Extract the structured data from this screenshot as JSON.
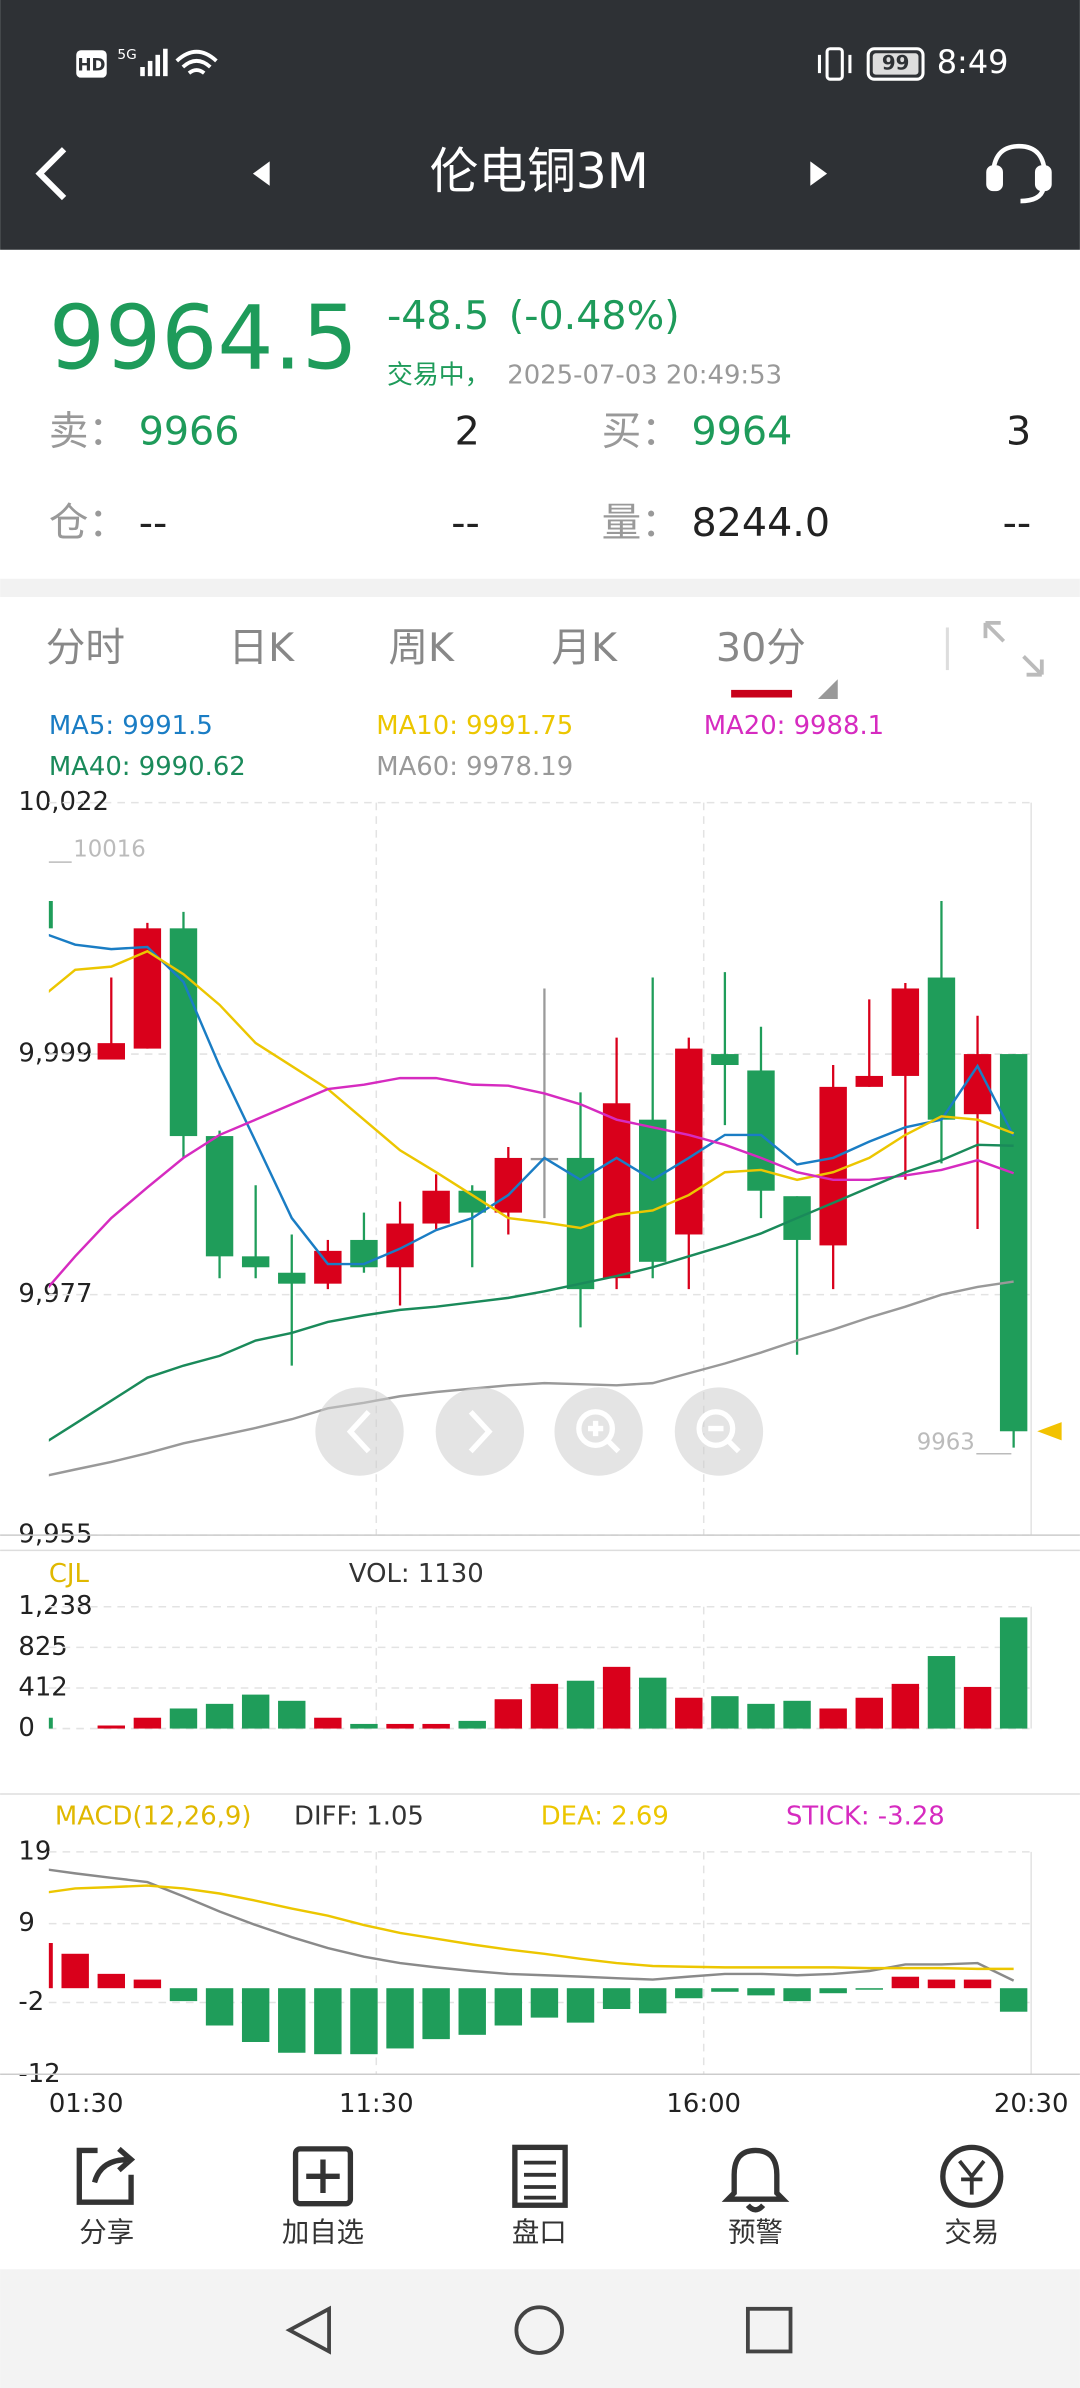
{
  "status_bar": {
    "network": "HD",
    "signal": "5G",
    "battery": 99,
    "time": "8:49"
  },
  "header": {
    "title": "伦电铜3M"
  },
  "quote": {
    "price": 9964.5,
    "change": -48.5,
    "change_percent": "(-0.48%)",
    "status": "交易中，",
    "timestamp": "2025-07-03 20:49:53",
    "rows": [
      [
        {
          "label": "卖：",
          "value": 9966,
          "qty": 2
        },
        {
          "label": "买：",
          "value": 9964,
          "qty": 3
        }
      ],
      [
        {
          "label": "仓：",
          "value": "--",
          "qty": "--"
        },
        {
          "label": "量：",
          "value": "8244.0",
          "qty": "--"
        }
      ]
    ]
  },
  "tabs": {
    "items": [
      "分时",
      "日K",
      "周K",
      "月K",
      "30分"
    ],
    "active": 4
  },
  "chart_data": [
    {
      "type": "candlestick",
      "ylim": [
        9955,
        10022
      ],
      "yticks": [
        {
          "value": 10022,
          "label": "10,022"
        },
        {
          "value": 9999,
          "label": "9,999"
        },
        {
          "value": 9977,
          "label": "9,977"
        },
        {
          "value": 9955,
          "label": "9,955"
        }
      ],
      "grid": true,
      "up_color": "#d9001b",
      "down_color": "#1f9d5a",
      "doji_color": "#9a9a9a",
      "open": [
        10013,
        null,
        9998.5,
        9999.5,
        10010.5,
        9991.5,
        9980.5,
        9979,
        9978,
        9982,
        9979.5,
        9983.5,
        9986.5,
        9984.5,
        9989.5,
        9989.5,
        9978.5,
        9993,
        9982.5,
        9999,
        9997.5,
        9986,
        9981.5,
        9996,
        9997,
        10006,
        9993.5,
        9999
      ],
      "high": [
        10016,
        null,
        10006,
        10011,
        10012,
        9992,
        9987,
        9982.5,
        9982,
        9984.5,
        9985.5,
        9988,
        9987,
        9990.5,
        10005,
        9995.5,
        10000.5,
        10006,
        10000.5,
        10006.5,
        10001.5,
        9986,
        9998,
        10004,
        10005.5,
        10013,
        10002.5,
        9999
      ],
      "low": [
        10010.5,
        null,
        9998.5,
        9999.5,
        9989.5,
        9978.5,
        9978.5,
        9970.5,
        9977.5,
        9979,
        9976,
        9983,
        9979.5,
        9982.5,
        9984,
        9974,
        9977.5,
        9978.5,
        9977.5,
        9992.5,
        9984,
        9971.5,
        9977.5,
        9996,
        9987.5,
        9989,
        9983,
        9963
      ],
      "close": [
        10010.5,
        null,
        10000,
        10010.5,
        9991.5,
        9980.5,
        9979.5,
        9978,
        9981,
        9979.5,
        9983.5,
        9986.5,
        9984.5,
        9989.5,
        9989.5,
        9977.5,
        9994.5,
        9980,
        9999.5,
        9998,
        9986.5,
        9982,
        9996,
        9997,
        10005,
        9993,
        9999,
        9964.5
      ],
      "series": [
        {
          "name": "MA5: 9991.5",
          "color": "#1a7dc4",
          "values": [
            10010.2,
            10009,
            10008.6,
            10008.8,
            10005.6,
            9997.9,
            9991,
            9984,
            9979.8,
            9979.8,
            9981.2,
            9982.9,
            9984,
            9986.1,
            9989.5,
            9987.5,
            9989.5,
            9987.5,
            9989.5,
            9991.6,
            9991.6,
            9988.9,
            9989.5,
            9991,
            9992.3,
            9993,
            9997.9,
            9991.5
          ]
        },
        {
          "name": "MA10: 9991.75",
          "color": "#ecc600",
          "values": [
            10004,
            10006.7,
            10007,
            10008.4,
            10006.3,
            10003.5,
            10000,
            9997.9,
            9995.8,
            9993,
            9990.2,
            9988.2,
            9986.1,
            9984,
            9983.6,
            9983.1,
            9984.3,
            9984.7,
            9986.1,
            9988.2,
            9988.4,
            9987.5,
            9988.2,
            9989.5,
            9991.6,
            9993.3,
            9993,
            9991.75
          ]
        },
        {
          "name": "MA20: 9988.1",
          "color": "#d62bc0",
          "values": [
            9976.7,
            9980.5,
            9984,
            9986.8,
            9989.5,
            9991.6,
            9993,
            9994.4,
            9995.8,
            9996.2,
            9996.8,
            9996.8,
            9996.2,
            9996.1,
            9995.4,
            9994.4,
            9993,
            9992.3,
            9991.6,
            9990.7,
            9989.5,
            9988.2,
            9987.5,
            9987.5,
            9987.9,
            9988.4,
            9989.3,
            9988.1
          ]
        },
        {
          "name": "MA40: 9990.62",
          "color": "#1a8a5a",
          "values": [
            9963.1,
            9965.2,
            9967.3,
            9969.4,
            9970.5,
            9971.4,
            9972.8,
            9973.5,
            9974.5,
            9975.1,
            9975.6,
            9975.9,
            9976.3,
            9976.7,
            9977.3,
            9978,
            9978.7,
            9979.5,
            9980.5,
            9981.5,
            9982.6,
            9984,
            9985.4,
            9986.8,
            9988.2,
            9989.3,
            9990.7,
            9990.62
          ]
        },
        {
          "name": "MA60: 9978.19",
          "color": "#999999",
          "values": [
            9960.3,
            9961,
            9961.7,
            9962.5,
            9963.4,
            9964.1,
            9964.8,
            9965.6,
            9966.6,
            9967.1,
            9967.7,
            9968.1,
            9968.4,
            9968.7,
            9968.9,
            9968.8,
            9968.7,
            9968.9,
            9969.8,
            9970.7,
            9971.7,
            9972.8,
            9973.8,
            9974.9,
            9975.9,
            9977,
            9977.7,
            9978.19
          ]
        }
      ],
      "max_label": 10016,
      "min_label": 9963
    },
    {
      "type": "bar",
      "title": "CJL",
      "ylim": [
        0,
        1238
      ],
      "yticks": [
        {
          "value": 1238,
          "label": "1,238"
        },
        825,
        412,
        0
      ],
      "grid": true,
      "series": [
        {
          "name": "VOL: 1130",
          "values": [
            110,
            null,
            31,
            110,
            204,
            251,
            345,
            282,
            110,
            47,
            47,
            47,
            78,
            298,
            454,
            486,
            627,
            517,
            313,
            329,
            251,
            282,
            204,
            313,
            454,
            737,
            423,
            1130
          ]
        }
      ]
    },
    {
      "type": "macd",
      "title": "MACD(12,26,9)",
      "ylim": [
        -12,
        19
      ],
      "yticks": [
        19,
        9,
        -2,
        -12
      ],
      "grid": true,
      "up_color": "#d9001b",
      "down_color": "#1f9d5a",
      "series": [
        {
          "name": "DIFF: 1.05",
          "color": "#8a8a8a",
          "label_color": "#333333",
          "values": [
            16.7,
            16,
            15.4,
            14.8,
            12.8,
            10.7,
            8.8,
            7.1,
            5.6,
            4.4,
            3.5,
            2.9,
            2.4,
            2,
            1.8,
            1.6,
            1.4,
            1.2,
            1.6,
            2,
            2,
            1.8,
            2,
            2.4,
            3.3,
            3.3,
            3.5,
            1.05
          ]
        },
        {
          "name": "DEA: 2.69",
          "color": "#ecc600",
          "label_color": "#ecc600",
          "values": [
            13.2,
            13.9,
            14.1,
            14.3,
            13.9,
            13.2,
            12.2,
            11.1,
            10.1,
            8.8,
            7.7,
            6.9,
            6.1,
            5.4,
            4.8,
            4.1,
            3.5,
            3.1,
            3,
            2.9,
            2.9,
            2.9,
            2.9,
            2.8,
            2.8,
            2.8,
            2.7,
            2.69
          ]
        },
        {
          "name": "STICK: -3.28",
          "type": "bar",
          "label_color": "#d62bc0",
          "values": [
            6.3,
            4.8,
            2,
            1.2,
            -1.8,
            -5.2,
            -7.5,
            -9,
            -9.2,
            -9.2,
            -8.4,
            -7.1,
            -6.5,
            -5.2,
            -4.1,
            -4.8,
            -2.9,
            -3.5,
            -1.4,
            -0.5,
            -1,
            -1.8,
            -0.7,
            -0.1,
            1.6,
            1.2,
            1.2,
            -3.28
          ]
        }
      ],
      "x_labels": [
        "01:30",
        "11:30",
        "16:00",
        "20:30"
      ]
    }
  ],
  "toolbar": [
    "分享",
    "加自选",
    "盘口",
    "预警",
    "交易"
  ]
}
